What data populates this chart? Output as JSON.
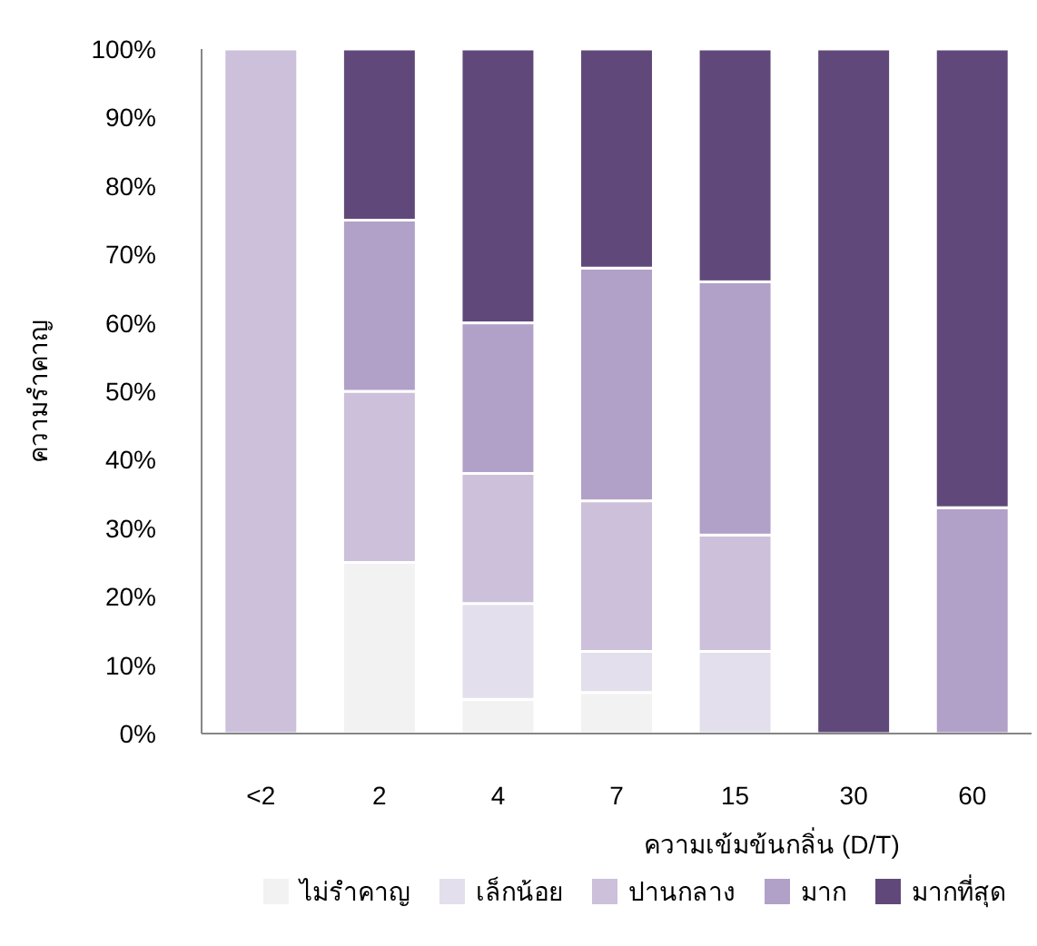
{
  "chart_data": {
    "type": "bar",
    "stacked": true,
    "xlabel": "ความเข้มข้นกลิ่น (D/T)",
    "ylabel": "ความรำคาญ",
    "categories": [
      "<2",
      "2",
      "4",
      "7",
      "15",
      "30",
      "60"
    ],
    "series": [
      {
        "name": "ไม่รำคาญ",
        "color": "#f2f2f2",
        "values": [
          0,
          25,
          5,
          6,
          0,
          0,
          0
        ]
      },
      {
        "name": "เล็กน้อย",
        "color": "#e4dfec",
        "values": [
          0,
          0,
          14,
          6,
          12,
          0,
          0
        ]
      },
      {
        "name": "ปานกลาง",
        "color": "#ccc0da",
        "values": [
          100,
          25,
          19,
          22,
          17,
          0,
          0
        ]
      },
      {
        "name": "มาก",
        "color": "#b1a0c7",
        "values": [
          0,
          25,
          22,
          34,
          37,
          0,
          33
        ]
      },
      {
        "name": "มากที่สุด",
        "color": "#60497a",
        "values": [
          0,
          25,
          40,
          32,
          34,
          100,
          67
        ]
      }
    ],
    "ylim": [
      0,
      100
    ],
    "yticks": [
      {
        "value": 0,
        "label": "0%"
      },
      {
        "value": 10,
        "label": "10%"
      },
      {
        "value": 20,
        "label": "20%"
      },
      {
        "value": 30,
        "label": "30%"
      },
      {
        "value": 40,
        "label": "40%"
      },
      {
        "value": 50,
        "label": "50%"
      },
      {
        "value": 60,
        "label": "60%"
      },
      {
        "value": 70,
        "label": "70%"
      },
      {
        "value": 80,
        "label": "80%"
      },
      {
        "value": 90,
        "label": "90%"
      },
      {
        "value": 100,
        "label": "100%"
      }
    ],
    "legend": "bottom"
  }
}
